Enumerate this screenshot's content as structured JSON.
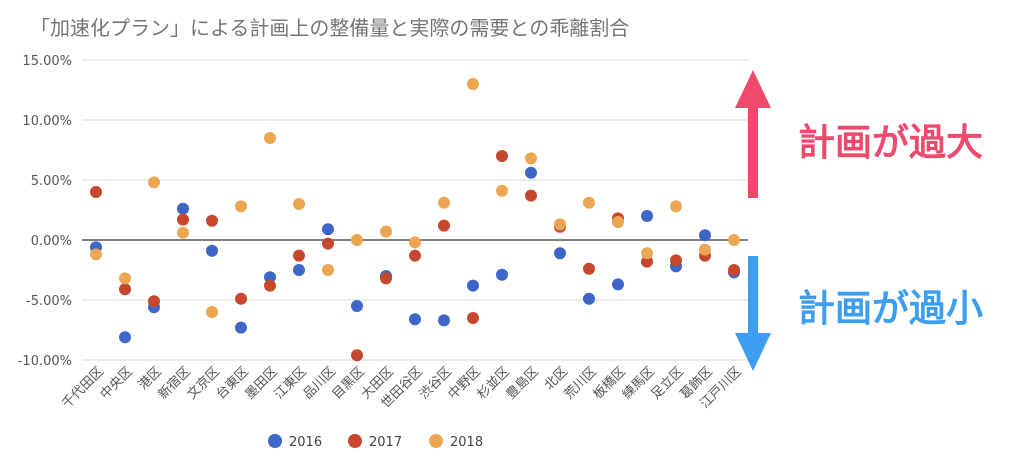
{
  "chart_data": {
    "type": "scatter",
    "title": "「加速化プラン」による計画上の整備量と実際の需要との乖離割合",
    "categories": [
      "千代田区",
      "中央区",
      "港区",
      "新宿区",
      "文京区",
      "台東区",
      "墨田区",
      "江東区",
      "品川区",
      "目黒区",
      "大田区",
      "世田谷区",
      "渋谷区",
      "中野区",
      "杉並区",
      "豊島区",
      "北区",
      "荒川区",
      "板橋区",
      "練馬区",
      "足立区",
      "葛飾区",
      "江戸川区"
    ],
    "series": [
      {
        "name": "2016",
        "color": "#3d66c8",
        "values": [
          -0.6,
          -8.1,
          -5.6,
          2.6,
          -0.9,
          -7.3,
          -3.1,
          -2.5,
          0.9,
          -5.5,
          -3.0,
          -6.6,
          -6.7,
          -3.8,
          -2.9,
          5.6,
          -1.1,
          -4.9,
          -3.7,
          2.0,
          -2.2,
          0.4,
          -2.7
        ]
      },
      {
        "name": "2017",
        "color": "#c6472e",
        "values": [
          4.0,
          -4.1,
          -5.1,
          1.7,
          1.6,
          -4.9,
          -3.8,
          -1.3,
          -0.3,
          -9.6,
          -3.2,
          -1.3,
          1.2,
          -6.5,
          7.0,
          3.7,
          1.1,
          -2.4,
          1.8,
          -1.8,
          -1.7,
          -1.3,
          -2.5
        ]
      },
      {
        "name": "2018",
        "color": "#eba651",
        "values": [
          -1.2,
          -3.2,
          4.8,
          0.6,
          -6.0,
          2.8,
          8.5,
          3.0,
          -2.5,
          0.0,
          0.7,
          -0.2,
          3.1,
          13.0,
          4.1,
          6.8,
          1.3,
          3.1,
          1.5,
          -1.1,
          2.8,
          -0.8,
          0.0
        ]
      }
    ],
    "yticks": [
      "15.00%",
      "10.00%",
      "5.00%",
      "0.00%",
      "-5.00%",
      "-10.00%"
    ],
    "ytick_values": [
      15,
      10,
      5,
      0,
      -5,
      -10
    ],
    "ylim": [
      -10,
      15
    ],
    "grid": true,
    "legend_position": "bottom"
  },
  "annotations": {
    "over": "計画が過大",
    "under": "計画が過小",
    "over_arrow_color": "#ee4a6d",
    "under_arrow_color": "#3d9ef0"
  }
}
